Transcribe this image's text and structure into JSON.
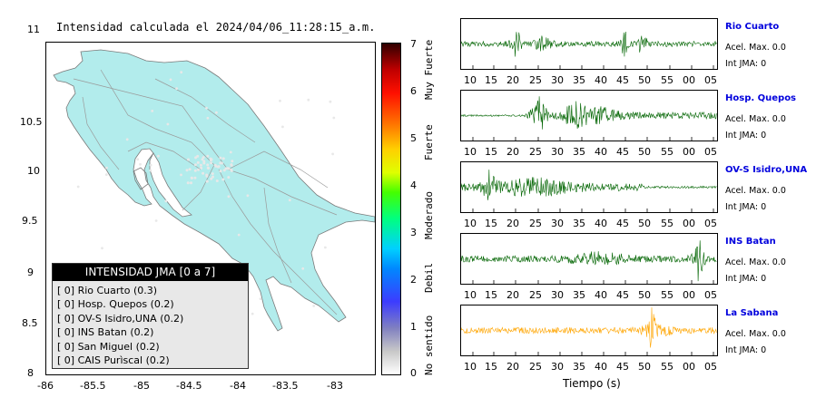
{
  "map": {
    "title": "Intensidad calculada el 2024/04/06_11:28:15_a.m.",
    "xticks": [
      "-86",
      "-85.5",
      "-85",
      "-84.5",
      "-84",
      "-83.5",
      "-83"
    ],
    "yticks": [
      "11",
      "10.5",
      "10",
      "9.5",
      "9",
      "8.5",
      "8"
    ],
    "land_color": "#b2ecec",
    "road_color": "#9a9a9a"
  },
  "colorbar": {
    "ticks": [
      "0",
      "1",
      "2",
      "3",
      "4",
      "5",
      "6",
      "7"
    ],
    "levels": [
      "No sentido",
      "Debil",
      "Moderado",
      "Fuerte",
      "Muy Fuerte"
    ]
  },
  "legend": {
    "title": "INTENSIDAD JMA [0 a 7]",
    "rows": [
      "[ 0] Rio Cuarto (0.3)",
      "[ 0] Hosp. Quepos (0.2)",
      "[ 0] OV-S Isidro,UNA (0.2)",
      "[ 0] INS Batan (0.2)",
      "[ 0] San Miguel (0.2)",
      "[ 0] CAIS Purìscal (0.2)"
    ]
  },
  "traces": {
    "xticks": [
      "10",
      "15",
      "20",
      "25",
      "30",
      "35",
      "40",
      "45",
      "50",
      "55",
      "00",
      "05"
    ],
    "xlabel": "Tiempo (s)",
    "stations": [
      {
        "name": "Rio Cuarto",
        "acel": "Acel. Max. 0.0",
        "jma": "Int JMA: 0",
        "color": "#006400"
      },
      {
        "name": "Hosp. Quepos",
        "acel": "Acel. Max. 0.0",
        "jma": "Int JMA: 0",
        "color": "#006400"
      },
      {
        "name": "OV-S Isidro,UNA",
        "acel": "Acel. Max. 0.0",
        "jma": "Int JMA: 0",
        "color": "#006400"
      },
      {
        "name": "INS Batan",
        "acel": "Acel. Max. 0.0",
        "jma": "Int JMA: 0",
        "color": "#006400"
      },
      {
        "name": "La Sabana",
        "acel": "Acel. Max. 0.0",
        "jma": "Int JMA: 0",
        "color": "#ffa500"
      }
    ]
  }
}
